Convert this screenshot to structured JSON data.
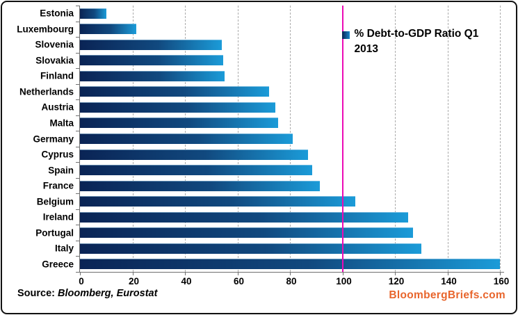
{
  "chart_data": {
    "type": "bar",
    "orientation": "horizontal",
    "legend": "% Debt-to-GDP Ratio Q1 2013",
    "legend_line1": "% Debt-to-GDP Ratio Q1",
    "legend_line2": "2013",
    "categories": [
      "Estonia",
      "Luxembourg",
      "Slovenia",
      "Slovakia",
      "Finland",
      "Netherlands",
      "Austria",
      "Malta",
      "Germany",
      "Cyprus",
      "Spain",
      "France",
      "Belgium",
      "Ireland",
      "Portugal",
      "Italy",
      "Greece"
    ],
    "values": [
      10,
      21.5,
      54,
      54.5,
      55,
      72,
      74.5,
      75.5,
      81,
      87,
      88.5,
      91.5,
      105,
      125,
      127,
      130,
      160
    ],
    "xlim": [
      0,
      160
    ],
    "x_ticks": [
      0,
      20,
      40,
      60,
      80,
      100,
      120,
      140,
      160
    ],
    "reference_line_x": 100,
    "grid": "vertical dashed",
    "legend_position": "inside top-right",
    "colors": {
      "bar_gradient_start": "#0A2455",
      "bar_gradient_end": "#1B9BD8",
      "gridline": "#ABABAB",
      "axis": "#6E6E6E",
      "reference_line": "#EB0AB5",
      "legend_swatch": "#0A2455"
    }
  },
  "footer": {
    "source_prefix": "Source: ",
    "source_names": "Bloomberg, Eurostat",
    "logo": "BloombergBriefs.com",
    "logo_color": "#E8652C"
  }
}
